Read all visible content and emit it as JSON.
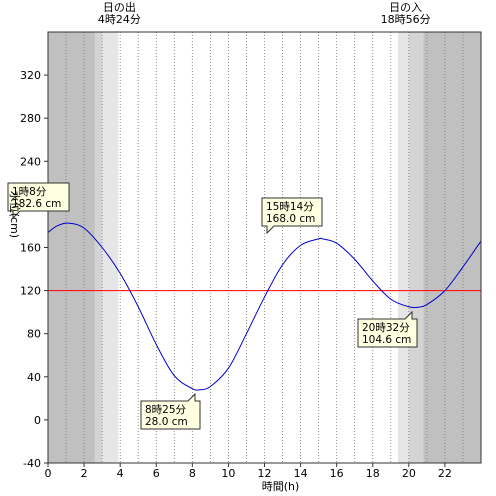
{
  "chart_data": {
    "type": "line",
    "xlabel": "時間(h)",
    "ylabel": "水位(cm)",
    "xlim": [
      0,
      24
    ],
    "ylim": [
      -40,
      360
    ],
    "x_ticks": [
      0,
      2,
      4,
      6,
      8,
      10,
      12,
      14,
      16,
      18,
      20,
      22
    ],
    "y_ticks": [
      -40,
      0,
      40,
      80,
      120,
      160,
      200,
      240,
      280,
      320
    ],
    "grid": "vertical dotted every 1h",
    "series": [
      {
        "color": "#0000cc",
        "x": [
          0,
          0.5,
          1.133,
          2,
          3,
          4,
          5,
          6,
          7,
          8,
          8.417,
          9,
          10,
          11,
          12,
          13,
          14,
          15,
          15.233,
          16,
          17,
          18,
          19,
          20,
          20.533,
          21,
          22,
          23,
          24
        ],
        "y": [
          174,
          180,
          182.6,
          178,
          160,
          136,
          105,
          70,
          41,
          29,
          28.0,
          31,
          48,
          80,
          114,
          144,
          162,
          168,
          168.0,
          164,
          149,
          129,
          112,
          105,
          104.6,
          107,
          120,
          142,
          166
        ]
      }
    ],
    "reference_line": {
      "y": 120,
      "color": "#ff0000"
    },
    "extrema": [
      {
        "kind": "high",
        "x": 1.133,
        "y": 182.6,
        "time": "1時8分",
        "level": "182.6 cm"
      },
      {
        "kind": "low",
        "x": 8.417,
        "y": 28.0,
        "time": "8時25分",
        "level": "28.0 cm"
      },
      {
        "kind": "high",
        "x": 15.233,
        "y": 168.0,
        "time": "15時14分",
        "level": "168.0 cm"
      },
      {
        "kind": "low",
        "x": 20.533,
        "y": 104.6,
        "time": "20時32分",
        "level": "104.6 cm"
      }
    ],
    "sunrise": {
      "label": "日の出",
      "time": "4時24分",
      "x": 4.4
    },
    "sunset": {
      "label": "日の入",
      "time": "18時56分",
      "x": 18.933
    },
    "shading": [
      {
        "from": 0,
        "to": 2.6,
        "color": "#c0c0c0"
      },
      {
        "from": 2.6,
        "to": 3.0,
        "color": "#d4d4d4"
      },
      {
        "from": 3.0,
        "to": 3.9,
        "color": "#e6e6e6"
      },
      {
        "from": 19.4,
        "to": 20.0,
        "color": "#e6e6e6"
      },
      {
        "from": 20.0,
        "to": 20.8,
        "color": "#d4d4d4"
      },
      {
        "from": 20.8,
        "to": 24,
        "color": "#c0c0c0"
      }
    ]
  }
}
